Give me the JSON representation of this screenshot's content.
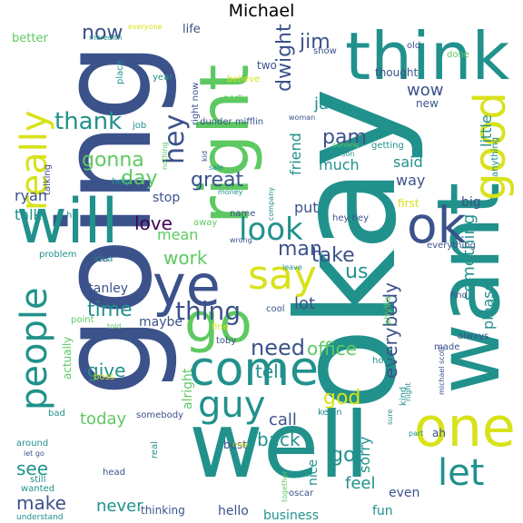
{
  "title": "Michael",
  "colors": {
    "dark_blue": "#3b528b",
    "teal": "#21918c",
    "green": "#5ec962",
    "yellow": "#d8e219",
    "purple": "#440154"
  },
  "words": [
    "going",
    "okay",
    "well",
    "want",
    "right",
    "think",
    "will",
    "ok",
    "good",
    "one",
    "ye",
    "come",
    "go",
    "guy",
    "say",
    "people",
    "really",
    "let",
    "look",
    "now",
    "hey",
    "thank",
    "need",
    "pam",
    "office",
    "thing",
    "dwight",
    "jim",
    "wow",
    "gonna",
    "god",
    "tell",
    "back",
    "got",
    "take",
    "us",
    "man",
    "something",
    "everybody",
    "day",
    "great",
    "love",
    "work",
    "time",
    "lot",
    "see",
    "make",
    "give",
    "today",
    "little",
    "said",
    "much",
    "friend",
    "way",
    "please",
    "sorry",
    "call",
    "feel",
    "never",
    "put",
    "jan",
    "ryan",
    "talk",
    "mean",
    "stanley",
    "maybe",
    "alright",
    "hello",
    "business",
    "fun",
    "nice",
    "even",
    "idea",
    "toby",
    "oscar",
    "kevin",
    "holly",
    "phyllis",
    "michael scott",
    "dunder mifflin",
    "better",
    "meredith",
    "life",
    "place",
    "car",
    "year",
    "party",
    "believe",
    "two",
    "show",
    "old",
    "done",
    "everyone",
    "thought",
    "new",
    "job",
    "woman",
    "coming",
    "getting",
    "anything",
    "talking",
    "nothing",
    "kid",
    "sale",
    "money",
    "help",
    "person",
    "company",
    "first",
    "big",
    "hi",
    "name",
    "wrong",
    "hey hey",
    "away",
    "stop",
    "everything",
    "problem",
    "leave",
    "find",
    "always",
    "point",
    "told",
    "cool",
    "fine",
    "made",
    "actually",
    "boss",
    "somebody",
    "kind",
    "night",
    "sure",
    "part",
    "bad",
    "around",
    "let go",
    "best",
    "may",
    "head",
    "real",
    "still",
    "wanted",
    "together",
    "ah",
    "understand",
    "thinking",
    "right now",
    "idea"
  ]
}
